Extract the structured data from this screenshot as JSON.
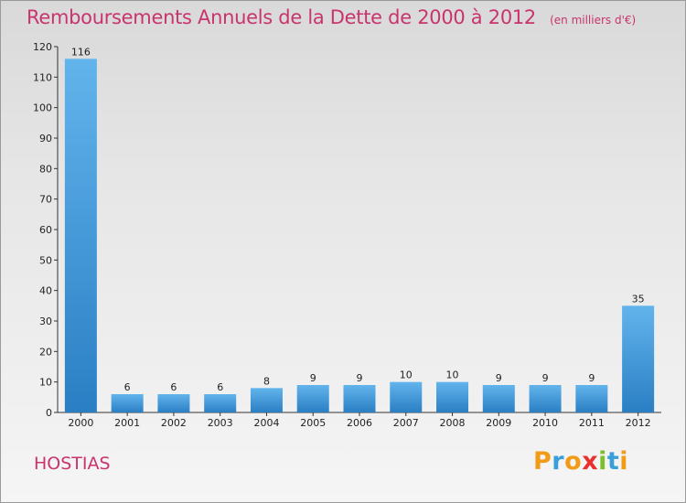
{
  "title": "Remboursements Annuels de la Dette de 2000 à 2012",
  "unit_note": "(en milliers d'€)",
  "commune": "HOSTIAS",
  "logo": {
    "letters": [
      "P",
      "r",
      "o",
      "x",
      "i",
      "t",
      "i"
    ],
    "colors": [
      "#f29b17",
      "#3a9fd8",
      "#f29b17",
      "#e8302e",
      "#7bbf2a",
      "#3a9fd8",
      "#f29b17"
    ]
  },
  "colors": {
    "bar": "#3a93d8",
    "bar_light": "#62b4ec",
    "text": "#c8346d"
  },
  "chart_data": {
    "type": "bar",
    "title": "Remboursements Annuels de la Dette de 2000 à 2012",
    "subtitle": "(en milliers d'€)",
    "xlabel": "",
    "ylabel": "",
    "categories": [
      "2000",
      "2001",
      "2002",
      "2003",
      "2004",
      "2005",
      "2006",
      "2007",
      "2008",
      "2009",
      "2010",
      "2011",
      "2012"
    ],
    "values": [
      116,
      6,
      6,
      6,
      8,
      9,
      9,
      10,
      10,
      9,
      9,
      9,
      35
    ],
    "ylim": [
      0,
      120
    ],
    "yticks": [
      0,
      10,
      20,
      30,
      40,
      50,
      60,
      70,
      80,
      90,
      100,
      110,
      120
    ],
    "grid": false,
    "legend": "none"
  }
}
